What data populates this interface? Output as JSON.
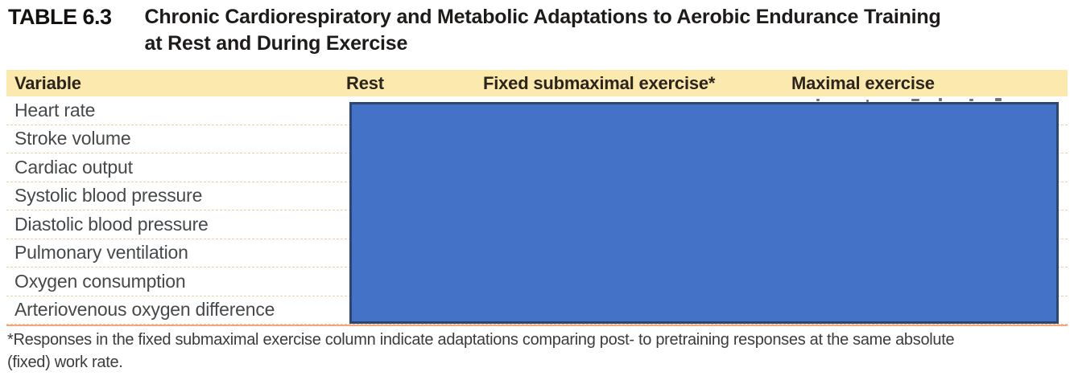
{
  "title": {
    "table_label": "TABLE 6.3",
    "heading_line1": "Chronic Cardiorespiratory and Metabolic Adaptations to Aerobic Endurance Training",
    "heading_line2": "at Rest and During Exercise"
  },
  "table": {
    "columns": {
      "variable": "Variable",
      "rest": "Rest",
      "fixed_submaximal": "Fixed submaximal exercise*",
      "maximal": "Maximal exercise"
    },
    "rows": [
      "Heart rate",
      "Stroke volume",
      "Cardiac output",
      "Systolic blood pressure",
      "Diastolic blood pressure",
      "Pulmonary ventilation",
      "Oxygen consumption",
      "Arteriovenous oxygen difference"
    ]
  },
  "footnote": {
    "line1": "*Responses in the fixed submaximal exercise column indicate adaptations comparing post- to pretraining responses at the same absolute",
    "line2": "(fixed) work rate."
  },
  "colors": {
    "header_bg": "#FCE9AE",
    "row_divider": "#EBCFA6",
    "bottom_rule": "#F2A878",
    "overlay_fill": "#4472C6",
    "overlay_border": "#2B4675"
  }
}
